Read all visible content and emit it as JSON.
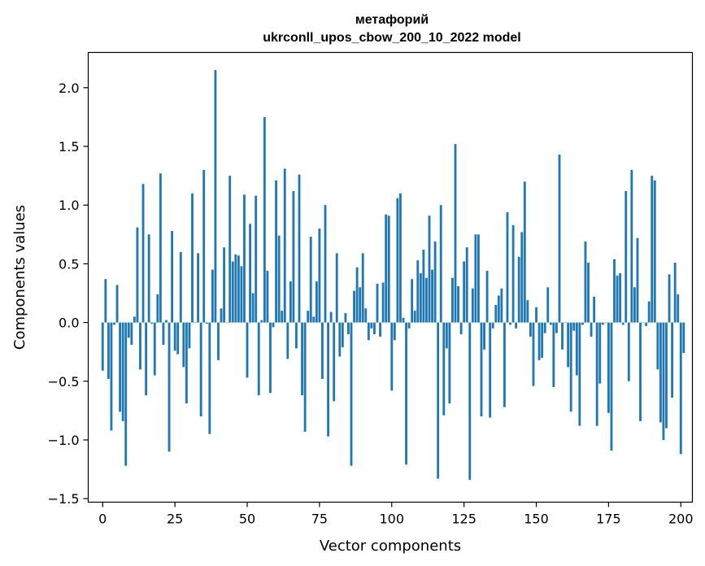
{
  "chart_data": {
    "type": "bar",
    "title": "метафорий",
    "subtitle": "ukrconll_upos_cbow_200_10_2022 model",
    "xlabel": "Vector components",
    "ylabel": "Components values",
    "xlim": [
      -5,
      204
    ],
    "ylim": [
      -1.53,
      2.3
    ],
    "x_ticks": [
      0,
      25,
      50,
      75,
      100,
      125,
      150,
      175,
      200
    ],
    "y_ticks": [
      -1.5,
      -1.0,
      -0.5,
      0.0,
      0.5,
      1.0,
      1.5,
      2.0
    ],
    "y_tick_labels": [
      "−1.5",
      "−1.0",
      "−0.5",
      "0.0",
      "0.5",
      "1.0",
      "1.5",
      "2.0"
    ],
    "bar_color": "#1f77b4",
    "grid": false,
    "values": [
      -0.41,
      0.37,
      -0.48,
      -0.92,
      -0.02,
      0.32,
      -0.76,
      -0.84,
      -1.22,
      -0.13,
      -0.19,
      0.05,
      0.81,
      -0.4,
      1.18,
      -0.62,
      0.75,
      -0.01,
      -0.45,
      0.24,
      1.27,
      -0.19,
      0.02,
      -1.1,
      0.78,
      -0.24,
      -0.27,
      0.6,
      -0.38,
      -0.69,
      -0.22,
      1.1,
      0.0,
      0.59,
      -0.8,
      1.3,
      -0.01,
      -0.95,
      0.45,
      2.15,
      -0.32,
      0.12,
      0.64,
      0.0,
      1.25,
      0.52,
      0.58,
      0.57,
      0.48,
      1.09,
      -0.47,
      0.84,
      0.25,
      1.08,
      -0.62,
      0.02,
      1.75,
      0.44,
      -0.6,
      -0.04,
      1.21,
      0.74,
      0.1,
      1.31,
      -0.31,
      0.35,
      1.12,
      -0.22,
      1.26,
      -0.62,
      -0.93,
      0.1,
      0.73,
      0.05,
      0.35,
      0.8,
      -0.48,
      1.0,
      -0.97,
      0.09,
      -0.67,
      0.59,
      -0.29,
      -0.21,
      0.08,
      -0.1,
      -1.22,
      0.27,
      0.47,
      0.3,
      0.59,
      0.12,
      -0.15,
      -0.05,
      -0.1,
      0.33,
      -0.12,
      0.34,
      0.92,
      0.91,
      -0.58,
      -0.15,
      1.06,
      1.1,
      0.04,
      -1.21,
      -0.05,
      0.37,
      0.1,
      0.53,
      0.42,
      0.62,
      0.38,
      0.91,
      0.45,
      0.69,
      -1.33,
      1.0,
      -0.79,
      -0.22,
      -0.69,
      0.38,
      1.52,
      0.31,
      -0.1,
      0.52,
      0.64,
      -1.34,
      0.29,
      0.75,
      0.75,
      -0.8,
      -0.23,
      0.44,
      -0.81,
      -0.05,
      0.15,
      0.23,
      0.29,
      -0.72,
      0.94,
      -0.02,
      0.83,
      -0.05,
      0.56,
      0.77,
      1.2,
      0.19,
      -0.12,
      -0.54,
      0.13,
      -0.32,
      -0.3,
      -0.09,
      0.3,
      -0.02,
      -0.55,
      -0.09,
      1.43,
      -0.23,
      0.0,
      -0.38,
      -0.76,
      -0.07,
      -0.45,
      -0.88,
      -0.02,
      0.69,
      0.51,
      -0.12,
      0.22,
      -0.88,
      -0.52,
      -0.02,
      0.0,
      -0.77,
      -1.09,
      0.54,
      0.4,
      0.42,
      -0.02,
      1.12,
      -0.5,
      1.3,
      0.3,
      0.72,
      -0.84,
      0.0,
      -0.03,
      0.18,
      1.25,
      1.21,
      -0.4,
      -0.85,
      -1.0,
      -0.9,
      0.41,
      -0.64,
      0.51,
      0.24,
      -1.12,
      -0.26
    ]
  }
}
